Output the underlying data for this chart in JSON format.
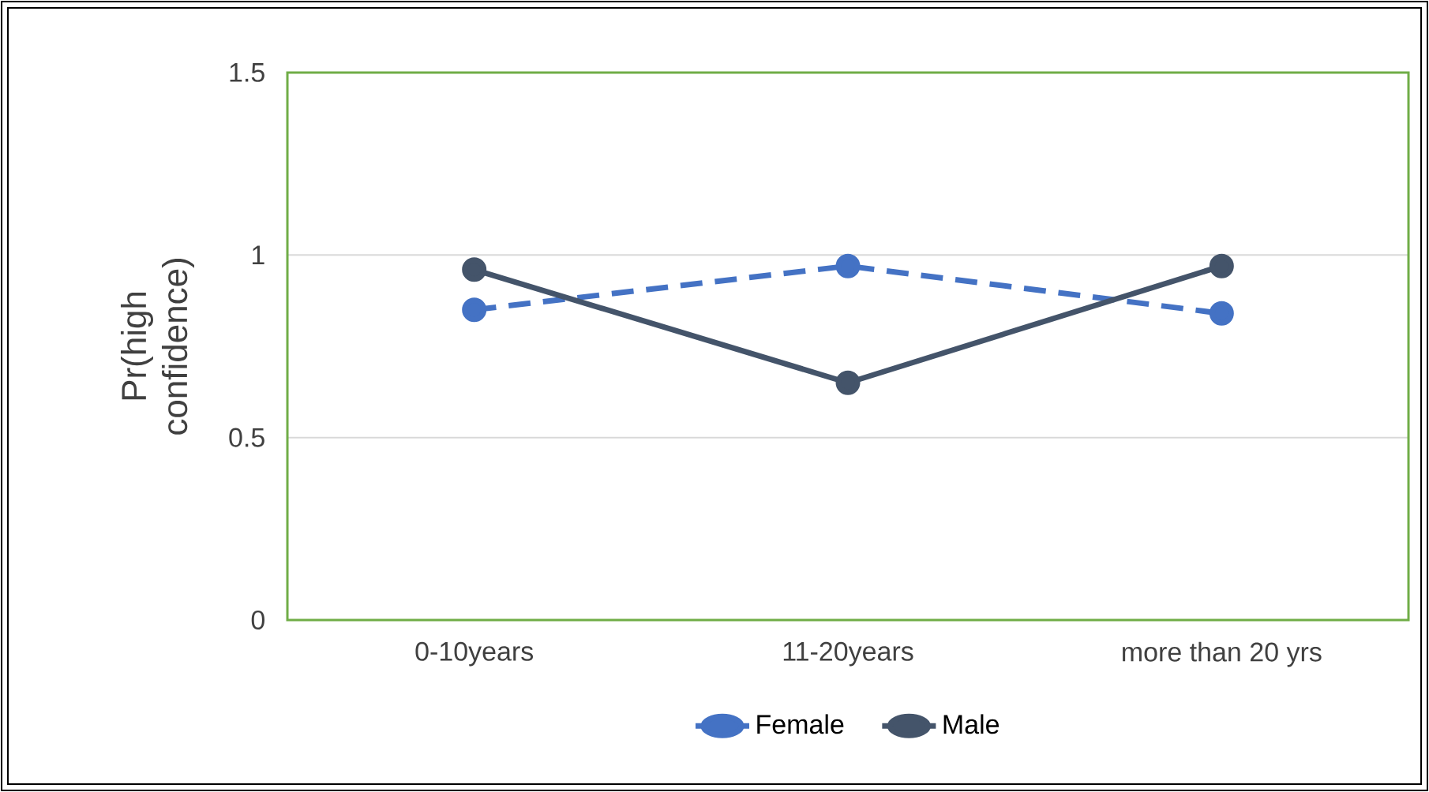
{
  "chart_data": {
    "type": "line",
    "ylabel": "Pr(high confidence)",
    "categories": [
      "0-10years",
      "11-20years",
      "more than 20 yrs"
    ],
    "series": [
      {
        "name": "Female",
        "color": "#4472c4",
        "line_style": "dashed",
        "values": [
          0.85,
          0.97,
          0.84
        ]
      },
      {
        "name": "Male",
        "color": "#44546a",
        "line_style": "solid",
        "values": [
          0.96,
          0.65,
          0.97
        ]
      }
    ],
    "ylim": [
      0,
      1.5
    ],
    "yticks": [
      0,
      0.5,
      1,
      1.5
    ],
    "grid": "y",
    "legend": "bottom",
    "marker": "circle"
  }
}
